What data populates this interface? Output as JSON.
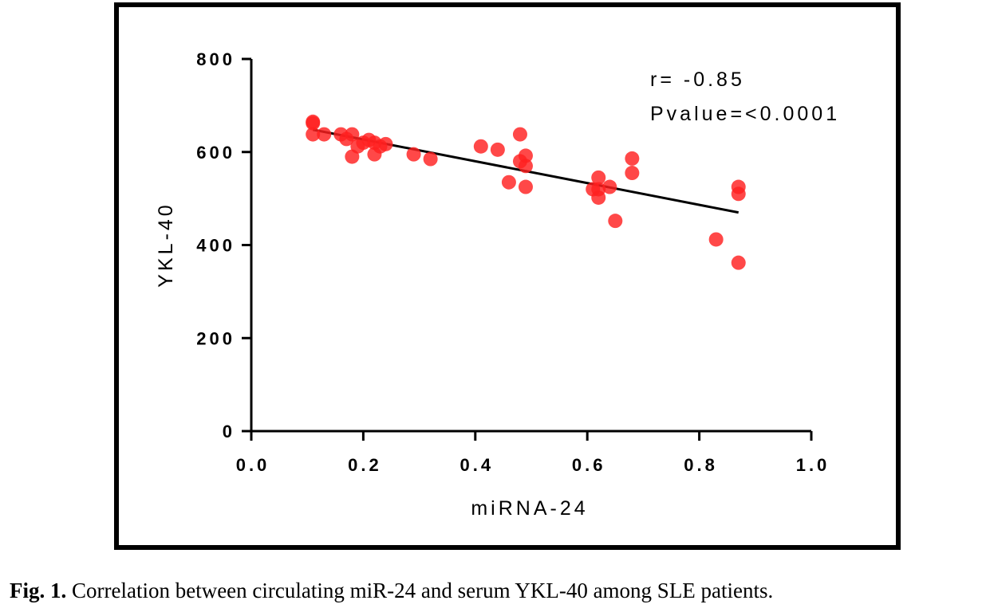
{
  "caption": {
    "label": "Fig. 1.",
    "text": " Correlation between circulating miR-24 and serum YKL-40 among SLE patients."
  },
  "chart_data": {
    "type": "scatter",
    "xlabel": "miRNA-24",
    "ylabel": "YKL-40",
    "xlim": [
      0.0,
      1.0
    ],
    "ylim": [
      0,
      800
    ],
    "xticks": [
      "0.0",
      "0.2",
      "0.4",
      "0.6",
      "0.8",
      "1.0"
    ],
    "yticks": [
      "0",
      "200",
      "400",
      "600",
      "800"
    ],
    "grid": false,
    "point_color": "#ff2020",
    "annotations": [
      "r= -0.85",
      "Pvalue=<0.0001"
    ],
    "regression_line": {
      "x": [
        0.11,
        0.87
      ],
      "y": [
        648,
        470
      ]
    },
    "points": [
      {
        "x": 0.11,
        "y": 665
      },
      {
        "x": 0.11,
        "y": 662
      },
      {
        "x": 0.11,
        "y": 638
      },
      {
        "x": 0.13,
        "y": 638
      },
      {
        "x": 0.16,
        "y": 638
      },
      {
        "x": 0.17,
        "y": 628
      },
      {
        "x": 0.18,
        "y": 638
      },
      {
        "x": 0.18,
        "y": 590
      },
      {
        "x": 0.19,
        "y": 612
      },
      {
        "x": 0.2,
        "y": 620
      },
      {
        "x": 0.21,
        "y": 626
      },
      {
        "x": 0.22,
        "y": 595
      },
      {
        "x": 0.22,
        "y": 620
      },
      {
        "x": 0.23,
        "y": 612
      },
      {
        "x": 0.24,
        "y": 617
      },
      {
        "x": 0.29,
        "y": 595
      },
      {
        "x": 0.32,
        "y": 585
      },
      {
        "x": 0.41,
        "y": 612
      },
      {
        "x": 0.44,
        "y": 605
      },
      {
        "x": 0.46,
        "y": 535
      },
      {
        "x": 0.48,
        "y": 638
      },
      {
        "x": 0.48,
        "y": 580
      },
      {
        "x": 0.49,
        "y": 592
      },
      {
        "x": 0.49,
        "y": 570
      },
      {
        "x": 0.49,
        "y": 525
      },
      {
        "x": 0.61,
        "y": 520
      },
      {
        "x": 0.62,
        "y": 545
      },
      {
        "x": 0.62,
        "y": 520
      },
      {
        "x": 0.62,
        "y": 502
      },
      {
        "x": 0.64,
        "y": 525
      },
      {
        "x": 0.65,
        "y": 452
      },
      {
        "x": 0.68,
        "y": 586
      },
      {
        "x": 0.68,
        "y": 555
      },
      {
        "x": 0.83,
        "y": 412
      },
      {
        "x": 0.87,
        "y": 525
      },
      {
        "x": 0.87,
        "y": 510
      },
      {
        "x": 0.87,
        "y": 362
      }
    ]
  }
}
